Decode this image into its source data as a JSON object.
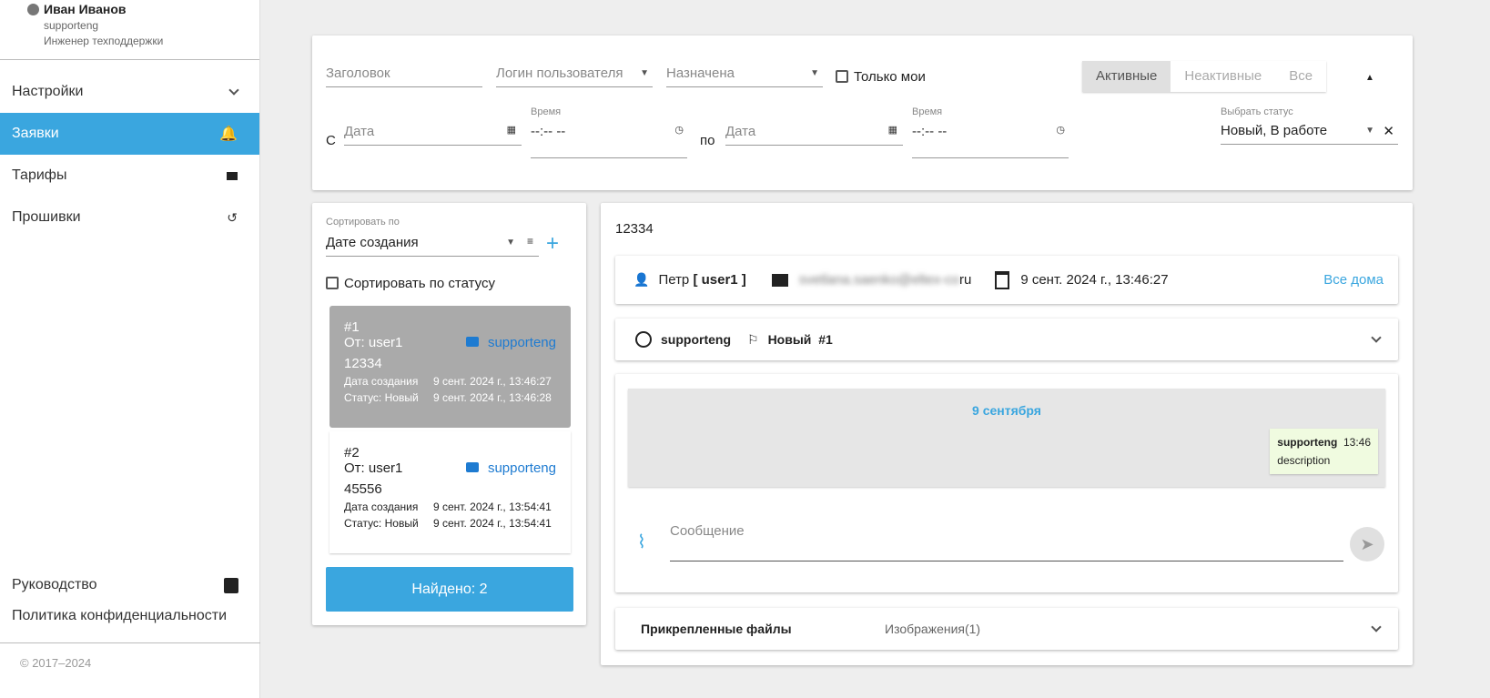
{
  "user": {
    "name": "Иван Иванов",
    "login": "supporteng",
    "role": "Инженер техподдержки"
  },
  "nav": [
    {
      "label": "Настройки",
      "icon": "chevron-down-icon"
    },
    {
      "label": "Заявки",
      "icon": "alarm-bell-icon",
      "active": true
    },
    {
      "label": "Тарифы",
      "icon": "video-camera-icon"
    },
    {
      "label": "Прошивки",
      "icon": "history-icon"
    }
  ],
  "nav_bottom": [
    {
      "label": "Руководство",
      "icon": "document-icon"
    },
    {
      "label": "Политика конфиденциальности"
    }
  ],
  "copyright": "© 2017–2024",
  "filters": {
    "title_placeholder": "Заголовок",
    "login_placeholder": "Логин пользователя",
    "assigned_placeholder": "Назначена",
    "only_mine": "Только мои",
    "segments": [
      "Активные",
      "Неактивные",
      "Все"
    ],
    "active_segment": "Активные",
    "from_label": "С",
    "to_label": "по",
    "date_placeholder": "Дата",
    "time_label": "Время",
    "time_placeholder": "--:-- --",
    "status_label": "Выбрать статус",
    "status_value": "Новый, В работе"
  },
  "list": {
    "sort_label": "Сортировать по",
    "sort_value": "Дате создания",
    "sort_by_status": "Сортировать по статусу",
    "found": "Найдено: 2",
    "tickets": [
      {
        "num": "#1",
        "from": "От: user1",
        "assignee": "supporteng",
        "title": "12334",
        "created_label": "Дата создания",
        "created": "9 сент. 2024 г., 13:46:27",
        "status_label": "Статус: Новый",
        "status_time": "9 сент. 2024 г., 13:46:28",
        "selected": true
      },
      {
        "num": "#2",
        "from": "От: user1",
        "assignee": "supporteng",
        "title": "45556",
        "created_label": "Дата создания",
        "created": "9 сент. 2024 г., 13:54:41",
        "status_label": "Статус: Новый",
        "status_time": "9 сент. 2024 г., 13:54:41"
      }
    ]
  },
  "detail": {
    "title": "12334",
    "user_name": "Петр",
    "user_login": "[ user1 ]",
    "email_blurred": "svetlana.saenko@eltex-co",
    "email_suffix": "ru",
    "date": "9 сент. 2024 г., 13:46:27",
    "all_houses": "Все дома",
    "assignee": "supporteng",
    "status": "Новый",
    "status_num": "#1",
    "chat_date": "9 сентября",
    "message": {
      "author": "supporteng",
      "time": "13:46",
      "text": "description"
    },
    "message_placeholder": "Сообщение",
    "files_label": "Прикрепленные файлы",
    "images_label": "Изображения(1)"
  },
  "colors": {
    "accent": "#3aa6df",
    "link": "#1e7bd1",
    "message_bg": "#f0fbe0"
  }
}
